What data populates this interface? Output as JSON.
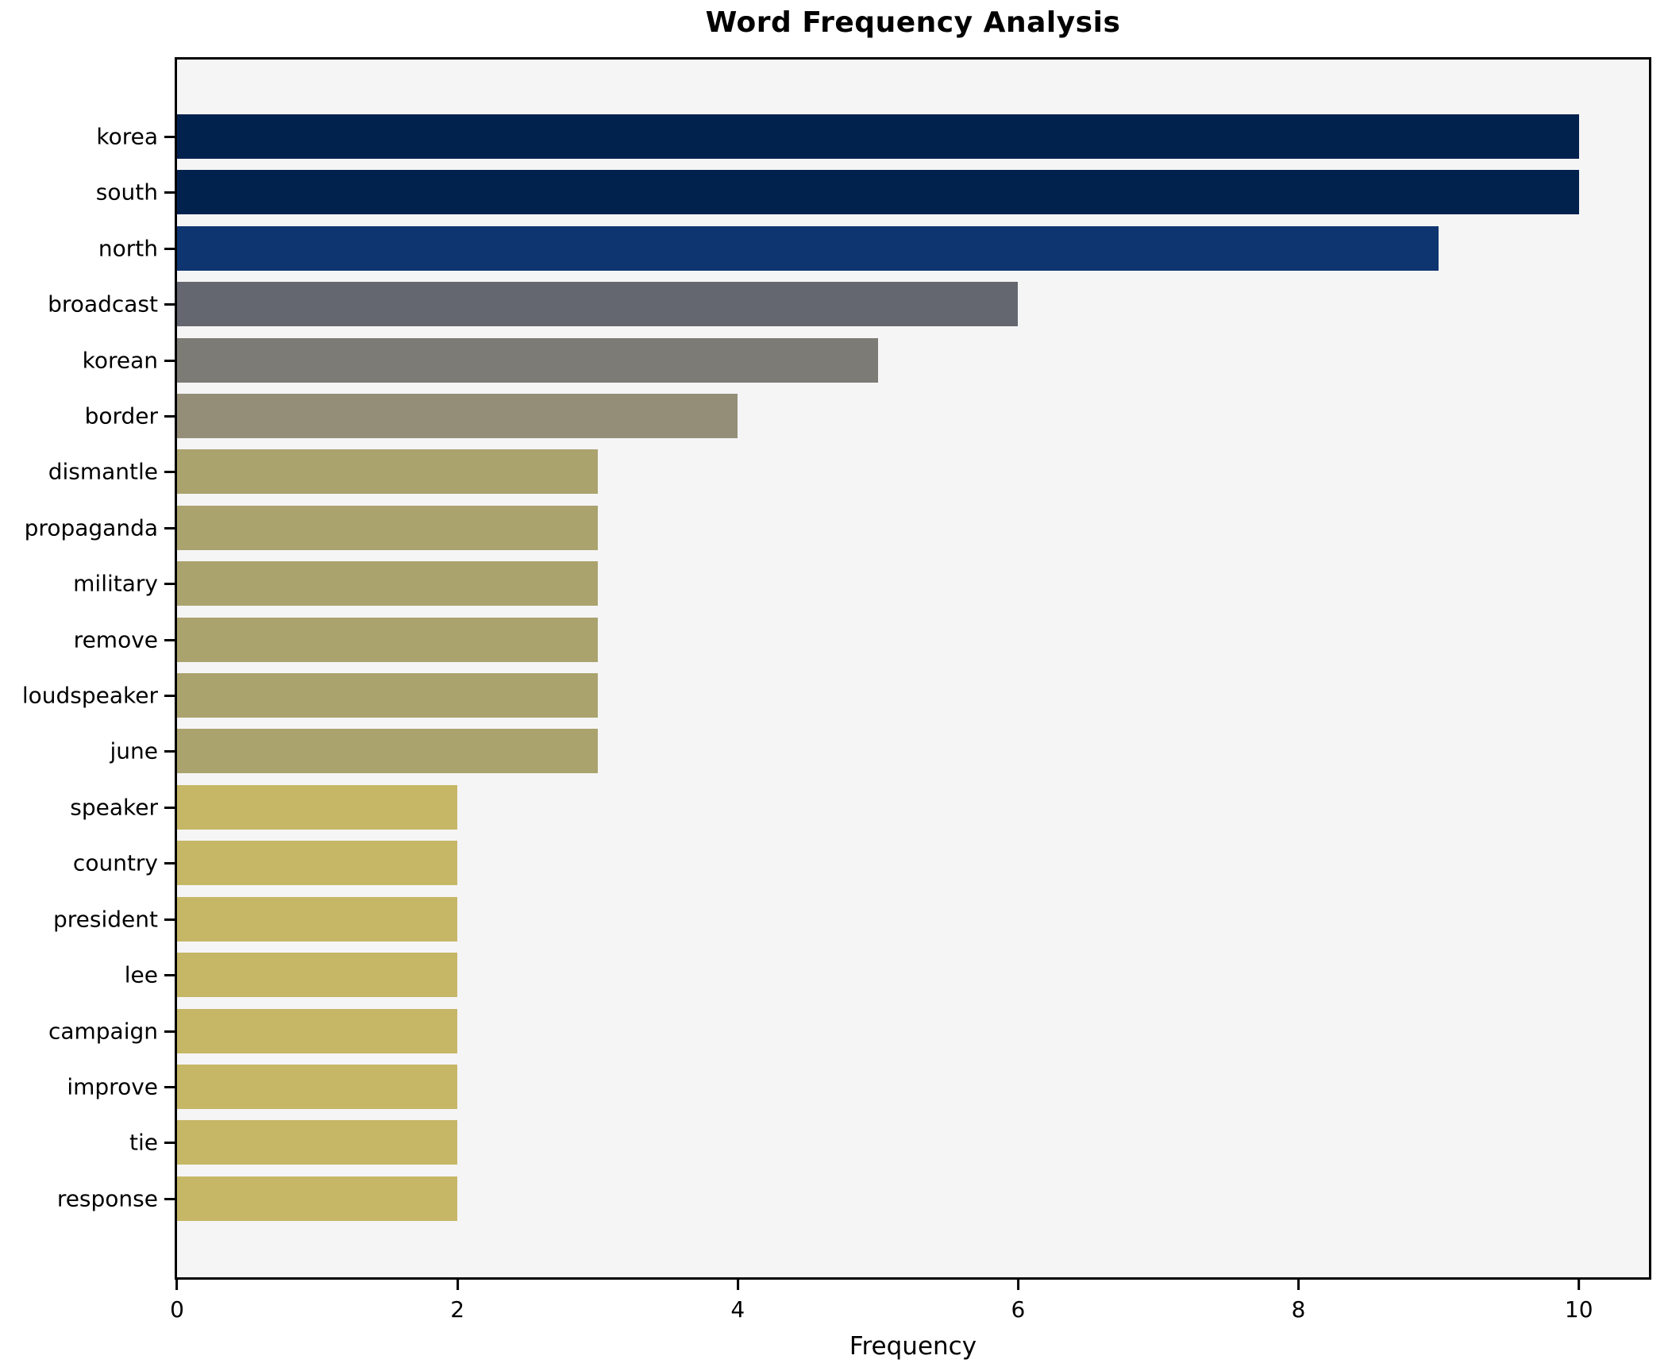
{
  "chart_data": {
    "type": "bar",
    "orientation": "horizontal",
    "title": "Word Frequency Analysis",
    "xlabel": "Frequency",
    "ylabel": "",
    "categories": [
      "korea",
      "south",
      "north",
      "broadcast",
      "korean",
      "border",
      "dismantle",
      "propaganda",
      "military",
      "remove",
      "loudspeaker",
      "june",
      "speaker",
      "country",
      "president",
      "lee",
      "campaign",
      "improve",
      "tie",
      "response"
    ],
    "values": [
      10,
      10,
      9,
      6,
      5,
      4,
      3,
      3,
      3,
      3,
      3,
      3,
      2,
      2,
      2,
      2,
      2,
      2,
      2,
      2
    ],
    "bar_colors": [
      "#02224e",
      "#02224e",
      "#0e356f",
      "#64676f",
      "#7c7b75",
      "#948e78",
      "#aba36e",
      "#aba36e",
      "#aba36e",
      "#aba36e",
      "#aba36e",
      "#aba36e",
      "#c6b766",
      "#c6b766",
      "#c6b766",
      "#c6b766",
      "#c6b766",
      "#c6b766",
      "#c6b766",
      "#c6b766"
    ],
    "xlim": [
      0,
      10.5
    ],
    "xticks": [
      0,
      2,
      4,
      6,
      8,
      10
    ],
    "grid": false,
    "legend": "none",
    "plot_background": "#f5f5f6",
    "figure_background": "#ffffff",
    "axis_color": "#000000"
  }
}
